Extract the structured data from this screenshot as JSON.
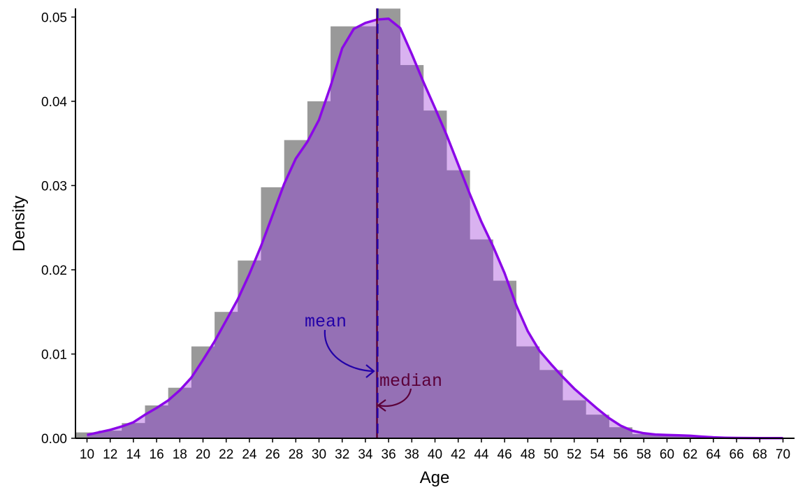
{
  "chart_data": {
    "type": "histogram+density",
    "title": "",
    "xlabel": "Age",
    "ylabel": "Density",
    "xlim": [
      9,
      71
    ],
    "ylim": [
      0,
      0.051
    ],
    "x_ticks": [
      10,
      12,
      14,
      16,
      18,
      20,
      22,
      24,
      26,
      28,
      30,
      32,
      34,
      36,
      38,
      40,
      42,
      44,
      46,
      48,
      50,
      52,
      54,
      56,
      58,
      60,
      62,
      64,
      66,
      68,
      70
    ],
    "x_tick_labels": [
      "10",
      "12",
      "14",
      "16",
      "18",
      "20",
      "22",
      "24",
      "26",
      "28",
      "30",
      "32",
      "34",
      "36",
      "38",
      "40",
      "42",
      "44",
      "46",
      "48",
      "50",
      "52",
      "54",
      "56",
      "58",
      "60",
      "62",
      "64",
      "66",
      "68",
      "70"
    ],
    "y_ticks": [
      0,
      0.01,
      0.02,
      0.03,
      0.04,
      0.05
    ],
    "y_tick_labels": [
      "0.00",
      "0.01",
      "0.02",
      "0.03",
      "0.04",
      "0.05"
    ],
    "grid": false,
    "histogram": {
      "bin_width": 2,
      "bin_starts": [
        9,
        11,
        13,
        15,
        17,
        19,
        21,
        23,
        25,
        27,
        29,
        31,
        33,
        35,
        37,
        39,
        41,
        43,
        45,
        47,
        49,
        51,
        53,
        55,
        57,
        59,
        61,
        63,
        65,
        67,
        69
      ],
      "density": [
        0.0007,
        0.0009,
        0.0018,
        0.0039,
        0.006,
        0.0109,
        0.015,
        0.0211,
        0.0298,
        0.0354,
        0.04,
        0.0489,
        0.0489,
        0.051,
        0.0443,
        0.0389,
        0.0318,
        0.0236,
        0.0187,
        0.0109,
        0.0081,
        0.0045,
        0.0028,
        0.0013,
        0.0005,
        0.0003,
        0.0002,
        0.0001,
        5e-05,
        3e-05,
        2e-05
      ],
      "bar_color": "#999999",
      "overlap_color": "#9570b5",
      "excess_color": "#d9b2f0"
    },
    "density_curve": {
      "x": [
        10,
        11,
        12,
        13,
        14,
        15,
        16,
        17,
        18,
        19,
        20,
        21,
        22,
        23,
        24,
        25,
        26,
        27,
        28,
        29,
        30,
        31,
        32,
        33,
        34,
        35,
        36,
        37,
        38,
        39,
        40,
        41,
        42,
        43,
        44,
        45,
        46,
        47,
        48,
        49,
        50,
        51,
        52,
        53,
        54,
        55,
        56,
        57,
        58,
        59,
        60,
        61,
        62,
        63,
        64,
        65,
        66,
        67,
        68,
        69,
        70
      ],
      "y": [
        0.0004,
        0.0007,
        0.001,
        0.0014,
        0.0019,
        0.0028,
        0.0036,
        0.0045,
        0.0057,
        0.0072,
        0.0093,
        0.0115,
        0.014,
        0.0165,
        0.0195,
        0.0228,
        0.0265,
        0.0302,
        0.0332,
        0.0352,
        0.0378,
        0.0418,
        0.0463,
        0.0486,
        0.0493,
        0.0497,
        0.0498,
        0.0487,
        0.0456,
        0.0423,
        0.0392,
        0.036,
        0.0325,
        0.029,
        0.0257,
        0.0228,
        0.0196,
        0.0158,
        0.0127,
        0.0104,
        0.0088,
        0.0073,
        0.0059,
        0.0047,
        0.0035,
        0.0024,
        0.0015,
        0.0009,
        0.0006,
        0.00045,
        0.0004,
        0.00035,
        0.0003,
        0.0002,
        0.00012,
        7e-05,
        4e-05,
        3e-05,
        2e-05,
        2e-05,
        2e-05
      ],
      "color": "#8b07e8"
    },
    "mean": {
      "value": 35.05,
      "label": "mean",
      "color": "#2200a8",
      "linestyle": "dashed"
    },
    "median": {
      "value": 35.0,
      "label": "median",
      "color": "#5b0039",
      "linestyle": "solid"
    }
  }
}
